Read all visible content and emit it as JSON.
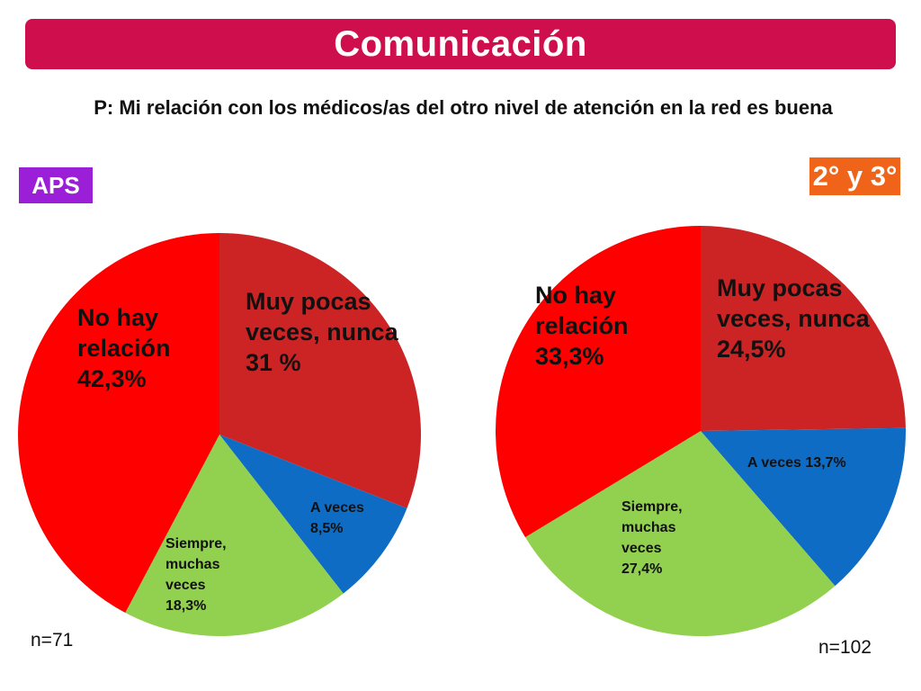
{
  "title": "Comunicación",
  "question": "P: Mi relación con los médicos/as del otro nivel de atención en la red es buena",
  "colors": {
    "title_bar": "#cf0f4d",
    "aps_badge": "#9b1fd6",
    "badge_23": "#f0641a",
    "no_hay_relacion": "#ff0000",
    "muy_pocas_veces": "#cc2424",
    "a_veces": "#0f6cc4",
    "siempre": "#92d050"
  },
  "chart_data": [
    {
      "type": "pie",
      "group_label": "APS",
      "sample": "n=71",
      "slices": [
        {
          "key": "muy_pocas_veces",
          "label_lines": [
            "Muy pocas",
            "veces, nunca",
            "31 %"
          ],
          "value": 31.0,
          "color_key": "muy_pocas_veces"
        },
        {
          "key": "a_veces",
          "label_lines": [
            "A veces",
            "8,5%"
          ],
          "value": 8.5,
          "color_key": "a_veces"
        },
        {
          "key": "siempre",
          "label_lines": [
            "Siempre,",
            "muchas",
            "veces",
            "18,3%"
          ],
          "value": 18.3,
          "color_key": "siempre"
        },
        {
          "key": "no_hay_relacion",
          "label_lines": [
            "No hay",
            "relación",
            "42,3%"
          ],
          "value": 42.3,
          "color_key": "no_hay_relacion"
        }
      ]
    },
    {
      "type": "pie",
      "group_label": "2° y 3°",
      "sample": "n=102",
      "slices": [
        {
          "key": "muy_pocas_veces",
          "label_lines": [
            "Muy pocas",
            "veces, nunca",
            "24,5%"
          ],
          "value": 24.5,
          "color_key": "muy_pocas_veces"
        },
        {
          "key": "a_veces",
          "label_lines": [
            "A veces 13,7%"
          ],
          "value": 13.7,
          "color_key": "a_veces"
        },
        {
          "key": "siempre",
          "label_lines": [
            "Siempre,",
            "muchas",
            "veces",
            "27,4%"
          ],
          "value": 27.4,
          "color_key": "siempre"
        },
        {
          "key": "no_hay_relacion",
          "label_lines": [
            "No hay",
            "relación",
            "33,3%"
          ],
          "value": 33.3,
          "color_key": "no_hay_relacion"
        }
      ]
    }
  ]
}
